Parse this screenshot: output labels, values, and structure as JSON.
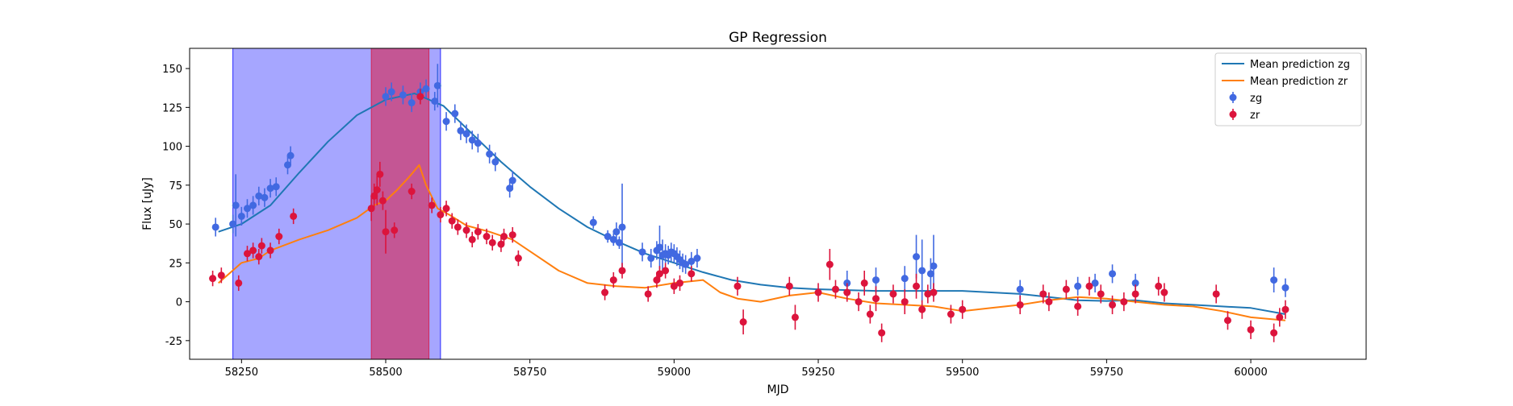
{
  "chart_data": {
    "type": "scatter",
    "title": "GP Regression",
    "xlabel": "MJD",
    "ylabel": "Flux [uJy]",
    "xlim": [
      58160,
      60200
    ],
    "ylim": [
      -37,
      163
    ],
    "xticks": [
      58250,
      58500,
      58750,
      59000,
      59250,
      59500,
      59750,
      60000
    ],
    "yticks": [
      -25,
      0,
      25,
      50,
      75,
      100,
      125,
      150
    ],
    "grid": false,
    "legend_position": "top-right",
    "shaded_regions": [
      {
        "x0": 58235,
        "x1": 58595,
        "color": "#0000ff",
        "opacity": 0.35
      },
      {
        "x0": 58475,
        "x1": 58575,
        "color": "#dc143c",
        "opacity": 0.55
      }
    ],
    "series": [
      {
        "name": "Mean prediction zg",
        "kind": "line",
        "color": "#1f77b4",
        "x": [
          58210,
          58250,
          58300,
          58350,
          58400,
          58450,
          58500,
          58550,
          58600,
          58650,
          58700,
          58750,
          58800,
          58850,
          58900,
          58950,
          59000,
          59050,
          59100,
          59150,
          59200,
          59250,
          59300,
          59350,
          59400,
          59450,
          59500,
          59550,
          59600,
          59650,
          59700,
          59750,
          59800,
          59850,
          59900,
          59950,
          60000,
          60060
        ],
        "y": [
          45,
          50,
          62,
          83,
          103,
          120,
          130,
          134,
          126,
          108,
          90,
          74,
          60,
          48,
          39,
          31,
          25,
          19,
          14,
          11,
          9,
          8,
          7.5,
          7,
          7,
          7,
          7,
          6,
          5,
          3,
          1,
          0.5,
          1,
          -1,
          -2,
          -3,
          -4,
          -8
        ]
      },
      {
        "name": "Mean prediction zr",
        "kind": "line",
        "color": "#ff7f0e",
        "x": [
          58210,
          58250,
          58280,
          58300,
          58350,
          58400,
          58450,
          58480,
          58500,
          58520,
          58540,
          58558,
          58570,
          58590,
          58610,
          58640,
          58680,
          58720,
          58760,
          58800,
          58850,
          58900,
          58950,
          59000,
          59050,
          59080,
          59110,
          59150,
          59200,
          59250,
          59300,
          59350,
          59400,
          59450,
          59500,
          59550,
          59600,
          59650,
          59700,
          59750,
          59800,
          59850,
          59900,
          59950,
          60000,
          60060
        ],
        "y": [
          12,
          25,
          28,
          33,
          40,
          46,
          54,
          62,
          65,
          72,
          80,
          88,
          75,
          60,
          56,
          49,
          45,
          40,
          30,
          20,
          12,
          10,
          9,
          12,
          14,
          6,
          2,
          0,
          4,
          6,
          2,
          -1,
          -2,
          -3,
          -6,
          -4,
          -2,
          1,
          3,
          2,
          0,
          -2,
          -3,
          -6,
          -10,
          -12
        ]
      },
      {
        "name": "zg",
        "kind": "errorbar",
        "color": "#4169e1",
        "x": [
          58205,
          58235,
          58240,
          58250,
          58260,
          58270,
          58280,
          58290,
          58300,
          58310,
          58330,
          58335,
          58500,
          58510,
          58530,
          58545,
          58560,
          58570,
          58585,
          58590,
          58605,
          58620,
          58630,
          58640,
          58650,
          58660,
          58680,
          58690,
          58715,
          58720,
          58860,
          58885,
          58895,
          58900,
          58905,
          58910,
          58945,
          58960,
          58970,
          58975,
          58980,
          58985,
          58990,
          58995,
          59000,
          59005,
          59010,
          59015,
          59020,
          59030,
          59040,
          59300,
          59350,
          59400,
          59420,
          59430,
          59445,
          59450,
          59600,
          59700,
          59730,
          59760,
          59800,
          60040,
          60060
        ],
        "y": [
          48,
          50,
          62,
          55,
          60,
          62,
          68,
          67,
          73,
          74,
          88,
          94,
          132,
          135,
          133,
          128,
          135,
          137,
          129,
          139,
          116,
          121,
          110,
          108,
          104,
          102,
          95,
          90,
          73,
          78,
          51,
          42,
          40,
          45,
          38,
          48,
          32,
          28,
          33,
          35,
          30,
          31,
          30,
          32,
          31,
          29,
          27,
          25,
          24,
          26,
          28,
          12,
          14,
          15,
          29,
          20,
          18,
          23,
          8,
          10,
          12,
          18,
          12,
          14,
          9
        ],
        "yerr": [
          6,
          6,
          20,
          6,
          6,
          6,
          6,
          6,
          6,
          6,
          6,
          6,
          6,
          6,
          6,
          6,
          6,
          6,
          6,
          14,
          6,
          6,
          6,
          6,
          6,
          6,
          6,
          6,
          6,
          6,
          4,
          4,
          4,
          6,
          4,
          28,
          6,
          6,
          6,
          14,
          10,
          6,
          6,
          6,
          6,
          6,
          6,
          6,
          6,
          6,
          6,
          8,
          8,
          8,
          14,
          20,
          10,
          20,
          6,
          6,
          6,
          6,
          6,
          8,
          6
        ]
      },
      {
        "name": "zr",
        "kind": "errorbar",
        "color": "#dc143c",
        "x": [
          58200,
          58215,
          58245,
          58260,
          58270,
          58280,
          58285,
          58300,
          58315,
          58340,
          58475,
          58480,
          58485,
          58490,
          58495,
          58500,
          58515,
          58545,
          58560,
          58580,
          58595,
          58605,
          58615,
          58625,
          58640,
          58650,
          58660,
          58675,
          58685,
          58700,
          58705,
          58720,
          58730,
          58880,
          58895,
          58910,
          58955,
          58970,
          58975,
          58985,
          59000,
          59010,
          59030,
          59110,
          59120,
          59200,
          59210,
          59250,
          59270,
          59280,
          59300,
          59320,
          59330,
          59340,
          59350,
          59360,
          59380,
          59400,
          59420,
          59430,
          59440,
          59450,
          59480,
          59500,
          59600,
          59640,
          59650,
          59680,
          59700,
          59720,
          59740,
          59760,
          59780,
          59800,
          59840,
          59850,
          59940,
          59960,
          60000,
          60040,
          60050,
          60060
        ],
        "y": [
          15,
          17,
          12,
          31,
          33,
          29,
          36,
          33,
          42,
          55,
          60,
          68,
          72,
          82,
          65,
          45,
          46,
          71,
          132,
          62,
          56,
          60,
          52,
          48,
          46,
          40,
          45,
          42,
          38,
          37,
          42,
          43,
          28,
          6,
          14,
          20,
          5,
          14,
          18,
          20,
          10,
          12,
          18,
          10,
          -13,
          10,
          -10,
          6,
          24,
          8,
          6,
          0,
          12,
          -8,
          2,
          -20,
          5,
          0,
          10,
          -5,
          5,
          6,
          -8,
          -5,
          -2,
          5,
          0,
          8,
          -3,
          10,
          5,
          -2,
          0,
          5,
          10,
          6,
          5,
          -12,
          -18,
          -20,
          -10,
          -5
        ],
        "yerr": [
          5,
          5,
          5,
          5,
          5,
          5,
          5,
          5,
          5,
          5,
          8,
          8,
          10,
          8,
          6,
          14,
          5,
          5,
          5,
          5,
          5,
          5,
          5,
          5,
          5,
          5,
          5,
          5,
          5,
          5,
          5,
          5,
          5,
          5,
          5,
          5,
          5,
          5,
          5,
          5,
          5,
          5,
          5,
          6,
          8,
          6,
          8,
          6,
          10,
          6,
          6,
          6,
          8,
          6,
          8,
          6,
          6,
          8,
          8,
          6,
          6,
          6,
          6,
          6,
          6,
          6,
          6,
          6,
          6,
          6,
          6,
          6,
          6,
          6,
          6,
          6,
          6,
          6,
          6,
          6,
          6,
          6
        ]
      }
    ]
  }
}
